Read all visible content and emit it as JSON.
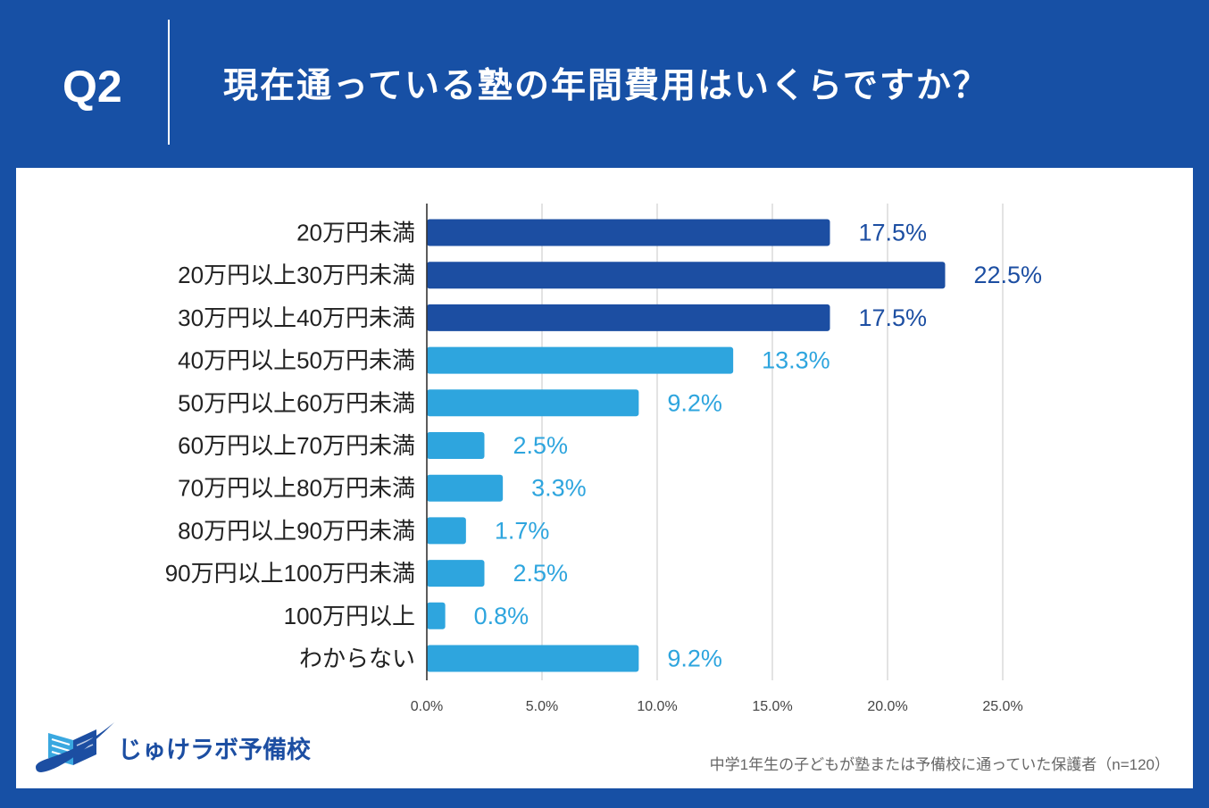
{
  "header": {
    "question_number": "Q2"
  },
  "chart_data": {
    "type": "bar",
    "horizontal": true,
    "title": "現在通っている塾の年間費用はいくらですか？",
    "categories": [
      "20万円未満",
      "20万円以上30万円未満",
      "30万円以上40万円未満",
      "40万円以上50万円未満",
      "50万円以上60万円未満",
      "60万円以上70万円未満",
      "70万円以上80万円未満",
      "80万円以上90万円未満",
      "90万円以上100万円未満",
      "100万円以上",
      "わからない"
    ],
    "values": [
      17.5,
      22.5,
      17.5,
      13.3,
      9.2,
      2.5,
      3.3,
      1.7,
      2.5,
      0.8,
      9.2
    ],
    "value_labels": [
      "17.5%",
      "22.5%",
      "17.5%",
      "13.3%",
      "9.2%",
      "2.5%",
      "3.3%",
      "1.7%",
      "2.5%",
      "0.8%",
      "9.2%"
    ],
    "xlabel": "",
    "ylabel": "",
    "xlim": [
      0,
      25
    ],
    "xticks": [
      0,
      5,
      10,
      15,
      20,
      25
    ],
    "xtick_labels": [
      "0.0%",
      "5.0%",
      "10.0%",
      "15.0%",
      "20.0%",
      "25.0%"
    ],
    "grid": true,
    "bar_colors": [
      "#1c4ea2",
      "#1c4ea2",
      "#1c4ea2",
      "#2ea5de",
      "#2ea5de",
      "#2ea5de",
      "#2ea5de",
      "#2ea5de",
      "#2ea5de",
      "#2ea5de",
      "#2ea5de"
    ]
  },
  "branding": {
    "logo_text": "じゅけラボ予備校",
    "logo_icon": "open-book-swoosh-icon"
  },
  "footnote": {
    "text": "中学1年生の子どもが塾または予備校に通っていた保護者（n=120）"
  },
  "colors": {
    "background": "#1750a5",
    "panel": "#ffffff",
    "header_text": "#ffffff",
    "bar_dark": "#1c4ea2",
    "bar_light": "#2ea5de",
    "category_label": "#222222",
    "tick_label": "#444444",
    "gridline": "#d0d0d0",
    "axis": "#333333",
    "footnote": "#666666",
    "logo": "#1c4ea2"
  }
}
